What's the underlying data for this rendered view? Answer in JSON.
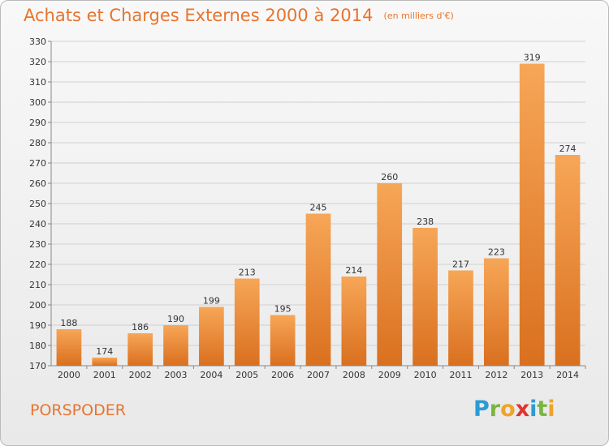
{
  "header": {
    "title": "Achats et Charges Externes 2000 à 2014",
    "subtitle": "(en milliers d'€)"
  },
  "footer": {
    "place": "PORSPODER",
    "logo_letters": [
      {
        "ch": "P",
        "color": "#2c9bd4"
      },
      {
        "ch": "r",
        "color": "#7ab541"
      },
      {
        "ch": "o",
        "color": "#f0a32a"
      },
      {
        "ch": "x",
        "color": "#e0342f"
      },
      {
        "ch": "i",
        "color": "#2c9bd4"
      },
      {
        "ch": "t",
        "color": "#7ab541"
      },
      {
        "ch": "i",
        "color": "#f0a32a"
      }
    ]
  },
  "colors": {
    "accent": "#e8742e",
    "bar_light": "#f7a657",
    "bar_dark": "#d9701f",
    "grid": "#d0d0d0"
  },
  "chart_data": {
    "type": "bar",
    "title": "Achats et Charges Externes 2000 à 2014",
    "subtitle": "(en milliers d'€)",
    "xlabel": "",
    "ylabel": "",
    "categories": [
      "2000",
      "2001",
      "2002",
      "2003",
      "2004",
      "2005",
      "2006",
      "2007",
      "2008",
      "2009",
      "2010",
      "2011",
      "2012",
      "2013",
      "2014"
    ],
    "values": [
      188,
      174,
      186,
      190,
      199,
      213,
      195,
      245,
      214,
      260,
      238,
      217,
      223,
      319,
      274
    ],
    "ylim": [
      170,
      330
    ],
    "yticks": [
      170,
      180,
      190,
      200,
      210,
      220,
      230,
      240,
      250,
      260,
      270,
      280,
      290,
      300,
      310,
      320,
      330
    ],
    "grid": "horizontal",
    "legend": "none"
  }
}
